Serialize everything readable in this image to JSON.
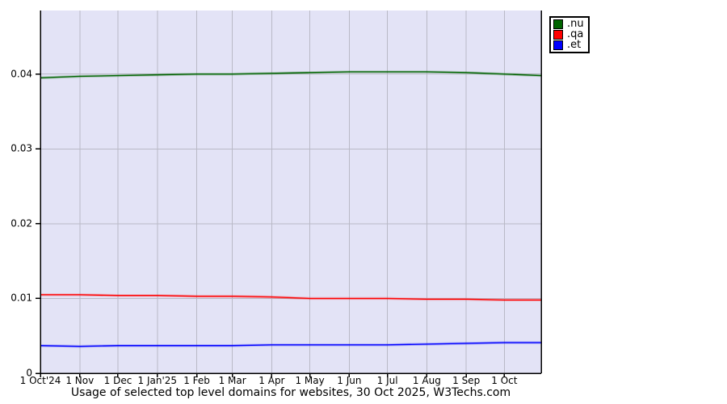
{
  "chart_data": {
    "type": "line",
    "title": "Usage of selected top level domains for websites, 30 Oct 2025, W3Techs.com",
    "x_tick_labels": [
      "1 Oct'24",
      "1 Nov",
      "1 Dec",
      "1 Jan'25",
      "1 Feb",
      "1 Mar",
      "1 Apr",
      "1 May",
      "1 Jun",
      "1 Jul",
      "1 Aug",
      "1 Sep",
      "1 Oct"
    ],
    "x_tick_days": [
      0,
      31,
      61,
      92,
      123,
      151,
      182,
      212,
      243,
      273,
      304,
      335,
      365
    ],
    "x_total_days": 394,
    "y_tick_labels": [
      "0",
      "0.01",
      "0.02",
      "0.03",
      "0.04"
    ],
    "y_tick_values": [
      0,
      0.01,
      0.02,
      0.03,
      0.04
    ],
    "ylim": [
      0,
      0.0485
    ],
    "grid": true,
    "legend_position": "top-right",
    "colors": {
      "plot_background": "#e3e3f6",
      "gridline": "#b9b9c6",
      "axis": "#000000",
      "legend_border": "#000000",
      "legend_background": "#ffffff"
    },
    "sample_days": [
      0,
      31,
      61,
      92,
      123,
      151,
      182,
      212,
      243,
      273,
      304,
      335,
      365,
      394
    ],
    "series": [
      {
        "name": ".nu",
        "color": "#006400",
        "values": [
          0.0395,
          0.0397,
          0.0398,
          0.0399,
          0.04,
          0.04,
          0.0401,
          0.0402,
          0.0403,
          0.0403,
          0.0403,
          0.0402,
          0.04,
          0.0398
        ]
      },
      {
        "name": ".qa",
        "color": "#ff0000",
        "values": [
          0.0105,
          0.0105,
          0.0104,
          0.0104,
          0.0103,
          0.0103,
          0.0102,
          0.01,
          0.01,
          0.01,
          0.0099,
          0.0099,
          0.0098,
          0.0098
        ]
      },
      {
        "name": ".et",
        "color": "#0000ff",
        "values": [
          0.0037,
          0.0036,
          0.0037,
          0.0037,
          0.0037,
          0.0037,
          0.0038,
          0.0038,
          0.0038,
          0.0038,
          0.0039,
          0.004,
          0.0041,
          0.0041
        ]
      }
    ]
  }
}
